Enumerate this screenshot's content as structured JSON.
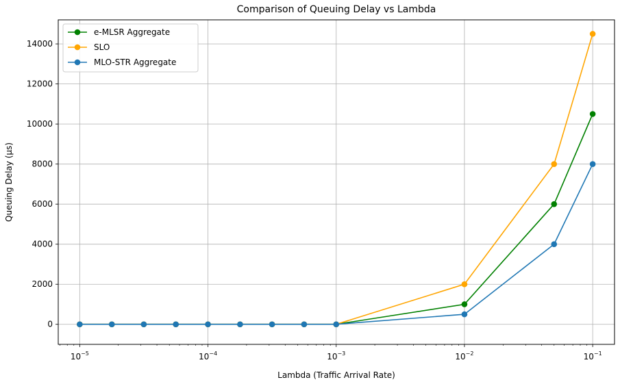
{
  "chart_data": {
    "type": "line",
    "title": "Comparison of Queuing Delay vs Lambda",
    "xlabel": "Lambda (Traffic Arrival Rate)",
    "ylabel": "Queuing Delay (µs)",
    "xscale": "log",
    "xlim": [
      6.8e-06,
      0.148
    ],
    "ylim": [
      -1000,
      15200
    ],
    "grid": true,
    "legend_position": "top-left",
    "x": [
      1e-05,
      1.78e-05,
      3.16e-05,
      5.62e-05,
      0.0001,
      0.000178,
      0.000316,
      0.000562,
      0.001,
      0.01,
      0.05,
      0.1
    ],
    "x_ticks": [
      {
        "value": 1e-05,
        "base": "10",
        "exp": "−5"
      },
      {
        "value": 0.0001,
        "base": "10",
        "exp": "−4"
      },
      {
        "value": 0.001,
        "base": "10",
        "exp": "−3"
      },
      {
        "value": 0.01,
        "base": "10",
        "exp": "−2"
      },
      {
        "value": 0.1,
        "base": "10",
        "exp": "−1"
      }
    ],
    "y_ticks": [
      0,
      2000,
      4000,
      6000,
      8000,
      10000,
      12000,
      14000
    ],
    "series": [
      {
        "name": "e-MLSR Aggregate",
        "color": "#008000",
        "values": [
          0,
          0,
          0,
          0,
          0,
          0,
          0,
          0,
          0,
          1000,
          6000,
          10500
        ]
      },
      {
        "name": "SLO",
        "color": "#ffa500",
        "values": [
          0,
          0,
          0,
          0,
          0,
          0,
          0,
          0,
          0,
          2000,
          8000,
          14500
        ]
      },
      {
        "name": "MLO-STR Aggregate",
        "color": "#1f77b4",
        "values": [
          0,
          0,
          0,
          0,
          0,
          0,
          0,
          0,
          0,
          500,
          4000,
          8000
        ]
      }
    ]
  }
}
